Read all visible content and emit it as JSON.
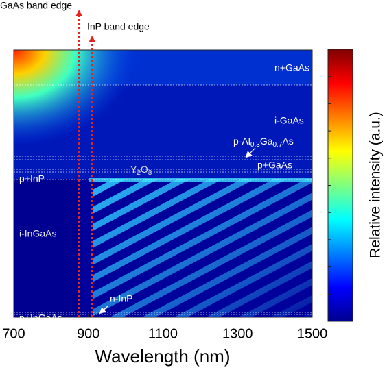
{
  "chart_data": {
    "type": "heatmap",
    "xlabel": "Wavelength (nm)",
    "xlim": [
      700,
      1500
    ],
    "xticks": [
      700,
      900,
      1100,
      1300,
      1500
    ],
    "colormap": [
      "#00008f",
      "#0000ff",
      "#0080ff",
      "#00ffff",
      "#80ff80",
      "#ffff00",
      "#ff8000",
      "#ff0000",
      "#800000"
    ],
    "colorbar_label": "Relative intensity (a.u.)",
    "band_edges": [
      {
        "text": "GaAs band edge",
        "x": 875,
        "color": "#e8231e"
      },
      {
        "text": "InP band edge",
        "x": 910,
        "color": "#e8231e"
      }
    ],
    "layers": [
      "n+GaAs",
      "i-GaAs",
      "p-Al0.3Ga0.7As",
      "p+GaAs",
      "Y2O3",
      "p+InP",
      "i-InGaAs",
      "n-InP",
      "n+InGaAs"
    ]
  }
}
